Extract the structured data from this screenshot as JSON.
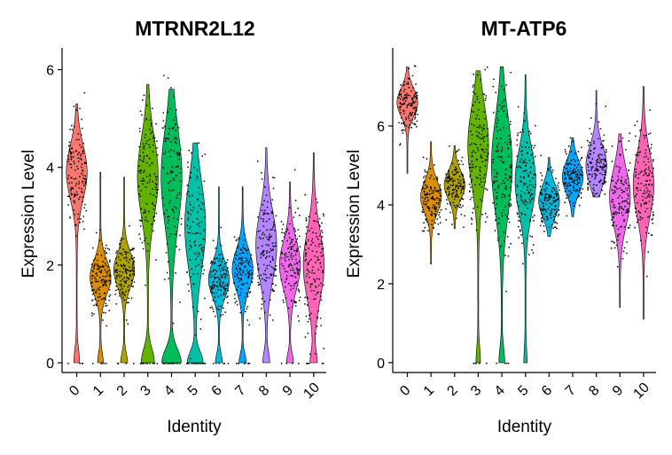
{
  "chart_data": [
    {
      "type": "violin",
      "title": "MTRNR2L12",
      "xlabel": "Identity",
      "ylabel": "Expression Level",
      "categories": [
        "0",
        "1",
        "2",
        "3",
        "4",
        "5",
        "6",
        "7",
        "8",
        "9",
        "10"
      ],
      "colors": [
        "#F8766D",
        "#DB8E00",
        "#AEA200",
        "#64B200",
        "#00BD5C",
        "#00C1A7",
        "#00BADE",
        "#00A6FF",
        "#B385FF",
        "#EF67EB",
        "#FF63B6"
      ],
      "ylim": [
        -0.2,
        6.3
      ],
      "yticks": [
        0,
        2,
        4,
        6
      ],
      "grid": false,
      "legend": "none",
      "series": [
        {
          "category": "0",
          "min": 0,
          "max": 5.3,
          "median": 3.9,
          "mode": 3.9,
          "spread": 0.55,
          "zero_fraction": 0.04
        },
        {
          "category": "1",
          "min": 0,
          "max": 3.9,
          "median": 1.8,
          "mode": 1.75,
          "spread": 0.35,
          "zero_fraction": 0.04
        },
        {
          "category": "2",
          "min": 0,
          "max": 3.8,
          "median": 1.9,
          "mode": 1.9,
          "spread": 0.35,
          "zero_fraction": 0.05
        },
        {
          "category": "3",
          "min": 0,
          "max": 5.7,
          "median": 3.3,
          "mode": 3.8,
          "spread": 0.8,
          "zero_fraction": 0.1
        },
        {
          "category": "4",
          "min": 0,
          "max": 5.6,
          "median": 3.0,
          "mode": 3.8,
          "spread": 1.0,
          "zero_fraction": 0.15
        },
        {
          "category": "5",
          "min": 0,
          "max": 4.5,
          "median": 2.6,
          "mode": 2.8,
          "spread": 0.9,
          "zero_fraction": 0.12
        },
        {
          "category": "6",
          "min": 0,
          "max": 3.6,
          "median": 1.7,
          "mode": 1.7,
          "spread": 0.35,
          "zero_fraction": 0.05
        },
        {
          "category": "7",
          "min": 0,
          "max": 3.6,
          "median": 1.9,
          "mode": 1.9,
          "spread": 0.4,
          "zero_fraction": 0.05
        },
        {
          "category": "8",
          "min": 0,
          "max": 4.4,
          "median": 2.2,
          "mode": 2.4,
          "spread": 0.7,
          "zero_fraction": 0.05
        },
        {
          "category": "9",
          "min": 0,
          "max": 3.7,
          "median": 1.9,
          "mode": 2.0,
          "spread": 0.5,
          "zero_fraction": 0.05
        },
        {
          "category": "10",
          "min": 0,
          "max": 4.3,
          "median": 2.1,
          "mode": 2.0,
          "spread": 0.7,
          "zero_fraction": 0.05
        }
      ]
    },
    {
      "type": "violin",
      "title": "MT-ATP6",
      "xlabel": "Identity",
      "ylabel": "Expression Level",
      "categories": [
        "0",
        "1",
        "2",
        "3",
        "4",
        "5",
        "6",
        "7",
        "8",
        "9",
        "10"
      ],
      "colors": [
        "#F8766D",
        "#DB8E00",
        "#AEA200",
        "#64B200",
        "#00BD5C",
        "#00C1A7",
        "#00BADE",
        "#00A6FF",
        "#B385FF",
        "#EF67EB",
        "#FF63B6"
      ],
      "ylim": [
        -0.25,
        7.8
      ],
      "yticks": [
        0,
        2,
        4,
        6
      ],
      "grid": false,
      "legend": "none",
      "series": [
        {
          "category": "0",
          "min": 4.8,
          "max": 7.5,
          "median": 6.6,
          "mode": 6.6,
          "spread": 0.35,
          "zero_fraction": 0.01
        },
        {
          "category": "1",
          "min": 2.5,
          "max": 5.6,
          "median": 4.2,
          "mode": 4.2,
          "spread": 0.4,
          "zero_fraction": 0.01
        },
        {
          "category": "2",
          "min": 3.4,
          "max": 5.5,
          "median": 4.5,
          "mode": 4.5,
          "spread": 0.35,
          "zero_fraction": 0.01
        },
        {
          "category": "3",
          "min": 0,
          "max": 7.4,
          "median": 5.3,
          "mode": 5.5,
          "spread": 1.0,
          "zero_fraction": 0.03
        },
        {
          "category": "4",
          "min": 0,
          "max": 7.5,
          "median": 5.0,
          "mode": 5.0,
          "spread": 1.2,
          "zero_fraction": 0.04
        },
        {
          "category": "5",
          "min": 0,
          "max": 7.3,
          "median": 4.6,
          "mode": 4.6,
          "spread": 0.8,
          "zero_fraction": 0.02
        },
        {
          "category": "6",
          "min": 3.2,
          "max": 5.2,
          "median": 4.2,
          "mode": 4.1,
          "spread": 0.4,
          "zero_fraction": 0.0
        },
        {
          "category": "7",
          "min": 3.7,
          "max": 5.7,
          "median": 4.7,
          "mode": 4.7,
          "spread": 0.4,
          "zero_fraction": 0.0
        },
        {
          "category": "8",
          "min": 4.2,
          "max": 6.9,
          "median": 5.1,
          "mode": 5.0,
          "spread": 0.5,
          "zero_fraction": 0.0
        },
        {
          "category": "9",
          "min": 1.4,
          "max": 5.8,
          "median": 4.0,
          "mode": 4.2,
          "spread": 0.7,
          "zero_fraction": 0.0
        },
        {
          "category": "10",
          "min": 1.1,
          "max": 7.0,
          "median": 4.5,
          "mode": 4.5,
          "spread": 0.8,
          "zero_fraction": 0.0
        }
      ]
    }
  ]
}
